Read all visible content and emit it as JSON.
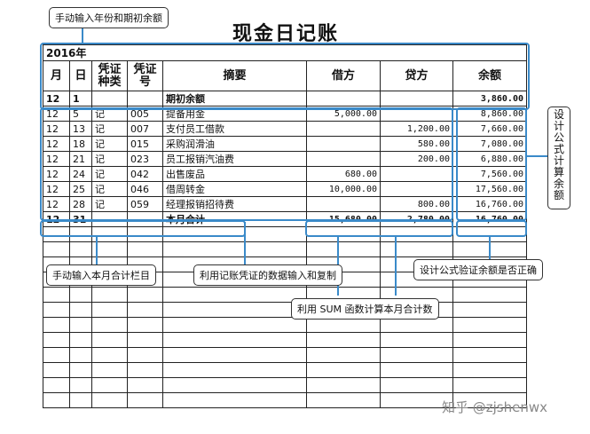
{
  "title": "现金日记账",
  "year": "2016年",
  "headers": {
    "month": "月",
    "day": "日",
    "type": "凭证种类",
    "num": "凭证号",
    "summary": "摘要",
    "debit": "借方",
    "credit": "贷方",
    "balance": "余额"
  },
  "opening": {
    "month": "12",
    "day": "1",
    "summary": "期初余额",
    "balance": "3,860.00"
  },
  "rows": [
    {
      "month": "12",
      "day": "5",
      "type": "记",
      "num": "005",
      "summary": "提备用金",
      "debit": "5,000.00",
      "credit": "",
      "balance": "8,860.00"
    },
    {
      "month": "12",
      "day": "13",
      "type": "记",
      "num": "007",
      "summary": "支付员工借款",
      "debit": "",
      "credit": "1,200.00",
      "balance": "7,660.00"
    },
    {
      "month": "12",
      "day": "18",
      "type": "记",
      "num": "015",
      "summary": "采购润滑油",
      "debit": "",
      "credit": "580.00",
      "balance": "7,080.00"
    },
    {
      "month": "12",
      "day": "21",
      "type": "记",
      "num": "023",
      "summary": "员工报销汽油费",
      "debit": "",
      "credit": "200.00",
      "balance": "6,880.00"
    },
    {
      "month": "12",
      "day": "24",
      "type": "记",
      "num": "042",
      "summary": "出售废品",
      "debit": "680.00",
      "credit": "",
      "balance": "7,560.00"
    },
    {
      "month": "12",
      "day": "25",
      "type": "记",
      "num": "046",
      "summary": "借周转金",
      "debit": "10,000.00",
      "credit": "",
      "balance": "17,560.00"
    },
    {
      "month": "12",
      "day": "28",
      "type": "记",
      "num": "059",
      "summary": "经理报销招待费",
      "debit": "",
      "credit": "800.00",
      "balance": "16,760.00"
    }
  ],
  "total": {
    "month": "12",
    "day": "31",
    "summary": "本月合计",
    "debit": "15,680.00",
    "credit": "2,780.00",
    "balance": "16,760.00"
  },
  "callouts": {
    "year_opening": "手动输入年份和期初余额",
    "balance_formula": "设计公式计算余额",
    "manual_total": "手动输入本月合计栏目",
    "voucher_input": "利用记账凭证的数据输入和复制",
    "sum_function": "利用 SUM 函数计算本月合计数",
    "verify": "设计公式验证余额是否正确"
  },
  "watermark": "知乎 @zjshenwx",
  "accent_color": "#3a8ac9"
}
